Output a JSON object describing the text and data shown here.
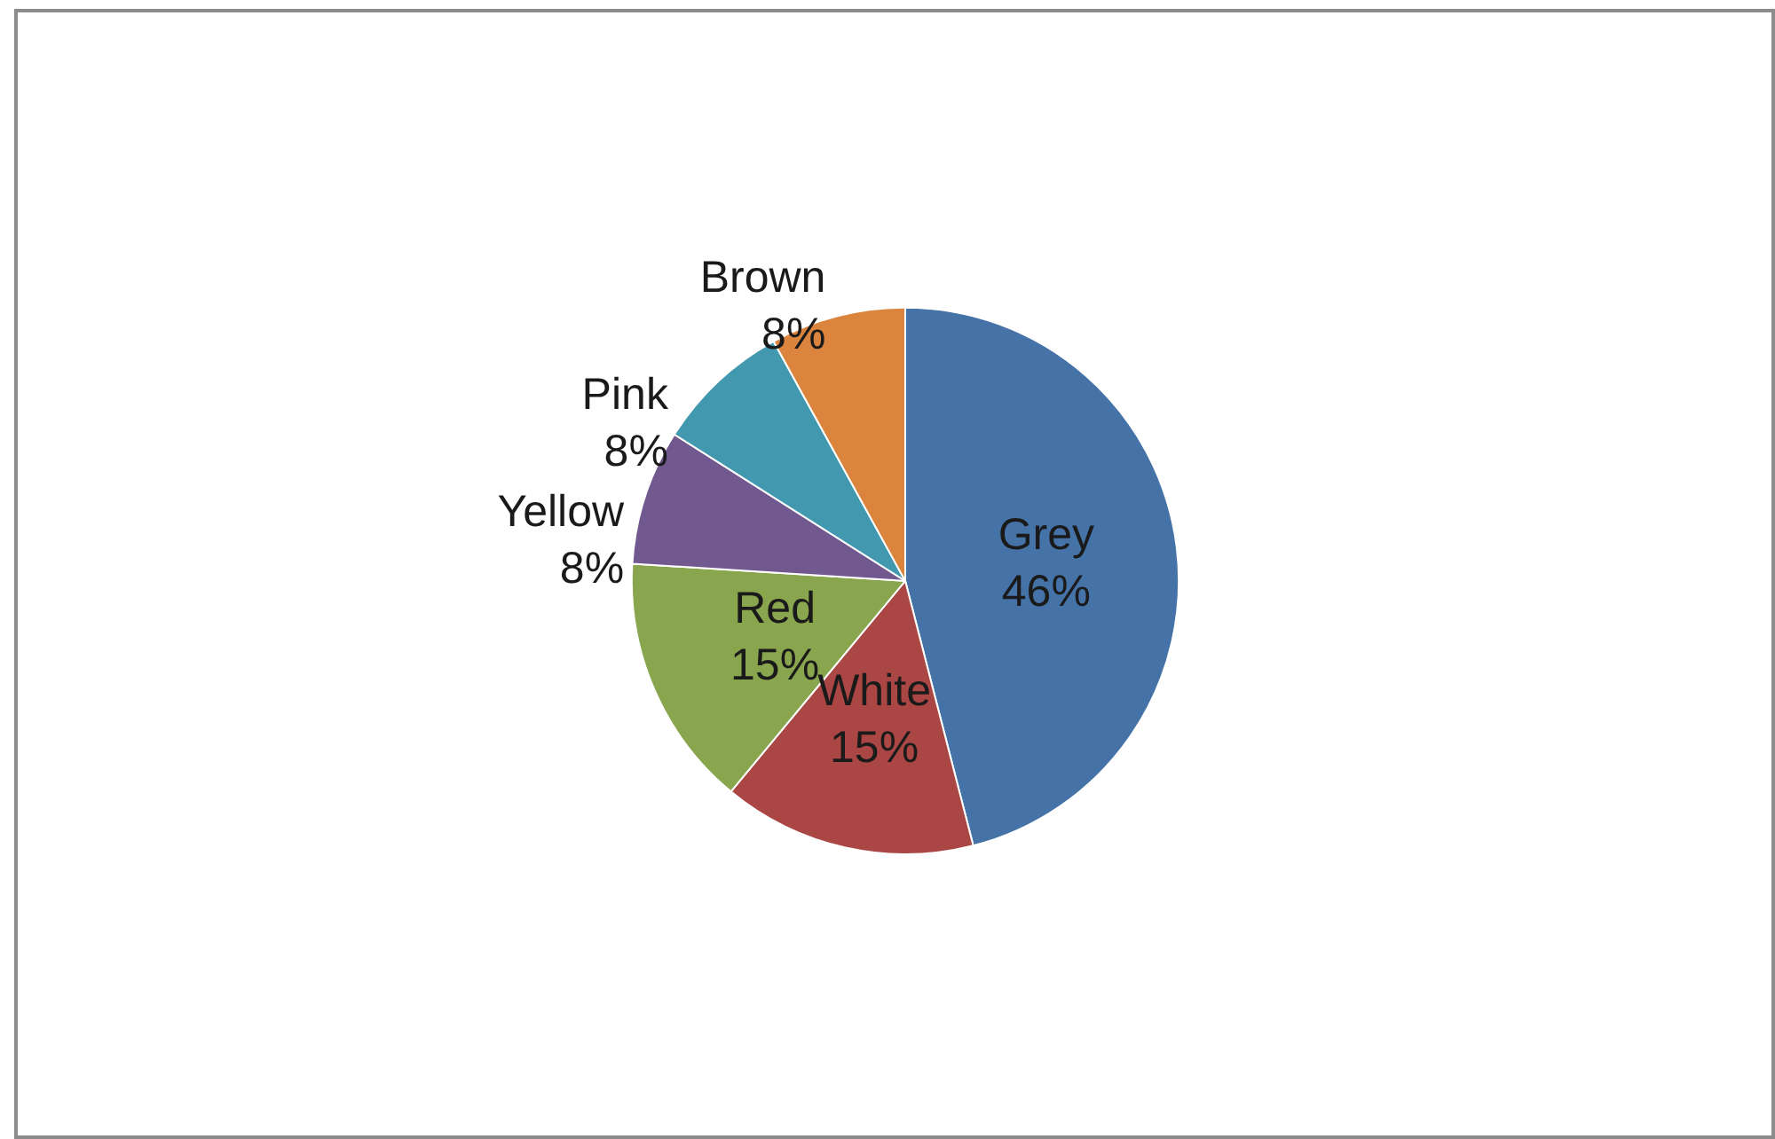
{
  "chart_data": {
    "type": "pie",
    "categories": [
      "Grey",
      "White",
      "Red",
      "Yellow",
      "Pink",
      "Brown"
    ],
    "values": [
      46,
      15,
      15,
      8,
      8,
      8
    ],
    "colors": [
      "#4572a7",
      "#aa4643",
      "#89a54e",
      "#71588f",
      "#4198af",
      "#db843d"
    ],
    "value_labels": [
      "46%",
      "15%",
      "15%",
      "8%",
      "8%",
      "8%"
    ],
    "legend": false
  }
}
